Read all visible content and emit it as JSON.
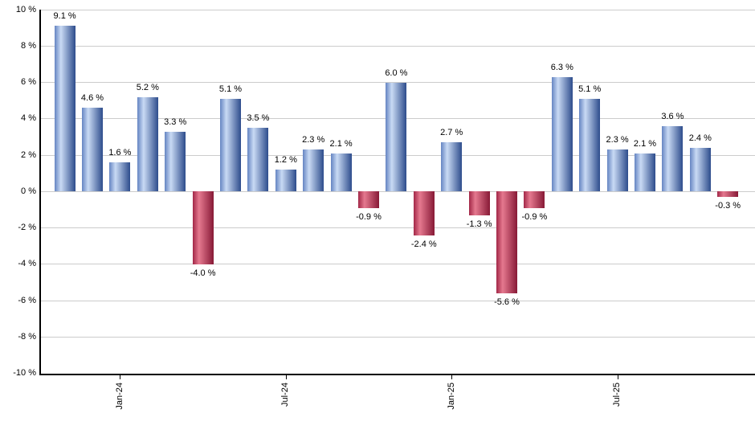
{
  "chart_data": {
    "type": "bar",
    "title": "",
    "xlabel": "",
    "ylabel": "",
    "grid": "horizontal",
    "legend": "none",
    "y_axis": {
      "min": -10,
      "max": 10,
      "ticks": [
        {
          "value": 10,
          "label": "10 %"
        },
        {
          "value": 8,
          "label": "8 %"
        },
        {
          "value": 6,
          "label": "6 %"
        },
        {
          "value": 4,
          "label": "4 %"
        },
        {
          "value": 2,
          "label": "2 %"
        },
        {
          "value": 0,
          "label": "0 %"
        },
        {
          "value": -2,
          "label": "-2 %"
        },
        {
          "value": -4,
          "label": "-4 %"
        },
        {
          "value": -6,
          "label": "-6 %"
        },
        {
          "value": -8,
          "label": "-8 %"
        },
        {
          "value": -10,
          "label": "-10 %"
        }
      ]
    },
    "x_axis": {
      "ticks": [
        {
          "bar_index": 2,
          "label": "Jan-24"
        },
        {
          "bar_index": 8,
          "label": "Jul-24"
        },
        {
          "bar_index": 14,
          "label": "Jan-25"
        },
        {
          "bar_index": 20,
          "label": "Jul-25"
        }
      ]
    },
    "bars": [
      {
        "value": 9.1,
        "label": "9.1 %"
      },
      {
        "value": 4.6,
        "label": "4.6 %"
      },
      {
        "value": 1.6,
        "label": "1.6 %"
      },
      {
        "value": 5.2,
        "label": "5.2 %"
      },
      {
        "value": 3.3,
        "label": "3.3 %"
      },
      {
        "value": -4.0,
        "label": "-4.0 %"
      },
      {
        "value": 5.1,
        "label": "5.1 %"
      },
      {
        "value": 3.5,
        "label": "3.5 %"
      },
      {
        "value": 1.2,
        "label": "1.2 %"
      },
      {
        "value": 2.3,
        "label": "2.3 %"
      },
      {
        "value": 2.1,
        "label": "2.1 %"
      },
      {
        "value": -0.9,
        "label": "-0.9 %"
      },
      {
        "value": 6.0,
        "label": "6.0 %"
      },
      {
        "value": -2.4,
        "label": "-2.4 %"
      },
      {
        "value": 2.7,
        "label": "2.7 %"
      },
      {
        "value": -1.3,
        "label": "-1.3 %"
      },
      {
        "value": -5.6,
        "label": "-5.6 %"
      },
      {
        "value": -0.9,
        "label": "-0.9 %"
      },
      {
        "value": 6.3,
        "label": "6.3 %"
      },
      {
        "value": 5.1,
        "label": "5.1 %"
      },
      {
        "value": 2.3,
        "label": "2.3 %"
      },
      {
        "value": 2.1,
        "label": "2.1 %"
      },
      {
        "value": 3.6,
        "label": "3.6 %"
      },
      {
        "value": 2.4,
        "label": "2.4 %"
      },
      {
        "value": -0.3,
        "label": "-0.3 %"
      }
    ],
    "colors": {
      "positive_gradient": [
        "#6585c2",
        "#c9daf4",
        "#2d4c8c"
      ],
      "negative_gradient": [
        "#a22747",
        "#e5798f",
        "#871936"
      ],
      "gridline": "#cccccc",
      "axis": "#000000",
      "text": "#000000",
      "background": "#ffffff"
    }
  }
}
